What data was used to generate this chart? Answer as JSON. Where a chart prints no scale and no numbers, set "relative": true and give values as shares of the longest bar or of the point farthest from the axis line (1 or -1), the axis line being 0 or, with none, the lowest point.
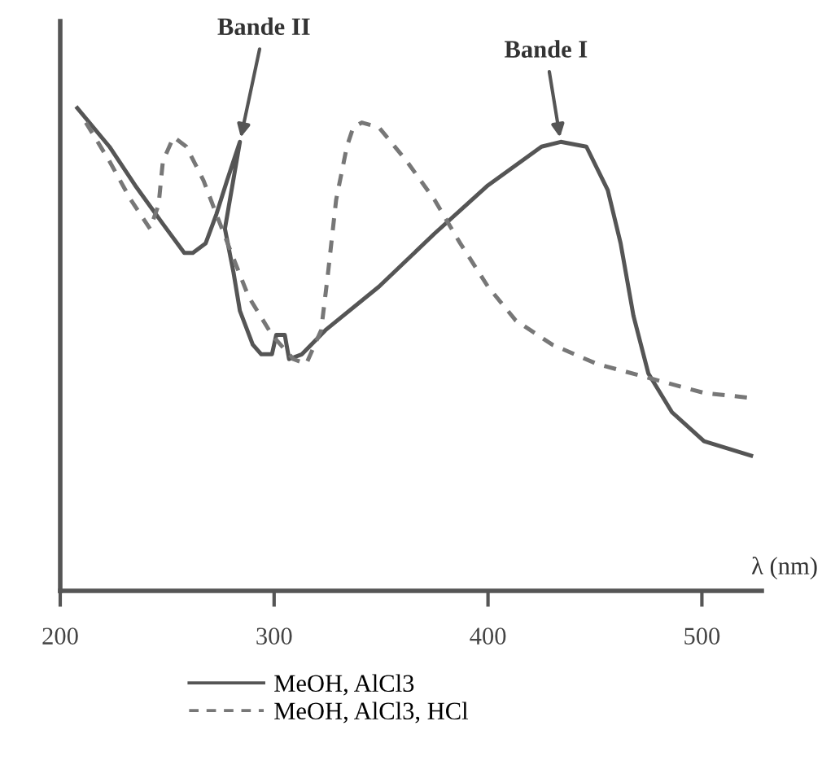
{
  "chart_data": {
    "type": "line",
    "relative": true,
    "xlabel": "λ (nm)",
    "xlim": [
      200,
      528
    ],
    "xticks": [
      200,
      300,
      400,
      500
    ],
    "legend": "bottom",
    "grid": false,
    "series": [
      {
        "name": "MeOH, AlCl3",
        "color": "#555555",
        "line_style": "solid",
        "x": [
          208,
          223,
          235,
          248,
          258,
          262,
          268,
          273,
          278,
          284,
          277,
          281,
          284,
          290,
          294,
          299,
          301,
          305,
          307,
          313,
          324,
          349,
          375,
          400,
          425,
          434,
          446,
          456,
          462,
          468,
          475,
          486,
          501,
          523
        ],
        "values": [
          1.0,
          0.92,
          0.84,
          0.76,
          0.7,
          0.7,
          0.72,
          0.78,
          0.85,
          0.93,
          0.75,
          0.66,
          0.58,
          0.51,
          0.49,
          0.49,
          0.53,
          0.53,
          0.48,
          0.49,
          0.54,
          0.63,
          0.74,
          0.84,
          0.92,
          0.93,
          0.92,
          0.83,
          0.72,
          0.57,
          0.45,
          0.37,
          0.31,
          0.28
        ]
      },
      {
        "name": "MeOH, AlCl3, HCl",
        "color": "#777777",
        "line_style": "dashed",
        "x": [
          212,
          223,
          233,
          242,
          246,
          248,
          253,
          259,
          267,
          273,
          280,
          288,
          299,
          309,
          315,
          322,
          325,
          329,
          334,
          337,
          341,
          349,
          362,
          375,
          387,
          400,
          413,
          430,
          451,
          476,
          501,
          522
        ],
        "values": [
          0.97,
          0.89,
          0.81,
          0.75,
          0.8,
          0.89,
          0.94,
          0.92,
          0.85,
          0.78,
          0.7,
          0.61,
          0.53,
          0.48,
          0.47,
          0.54,
          0.65,
          0.81,
          0.92,
          0.96,
          0.97,
          0.96,
          0.89,
          0.81,
          0.72,
          0.63,
          0.56,
          0.51,
          0.47,
          0.44,
          0.41,
          0.4
        ]
      }
    ],
    "annotations": [
      {
        "text": "Bande II",
        "x": 284,
        "y": 0.93
      },
      {
        "text": "Bande I",
        "x": 434,
        "y": 0.93
      }
    ]
  }
}
